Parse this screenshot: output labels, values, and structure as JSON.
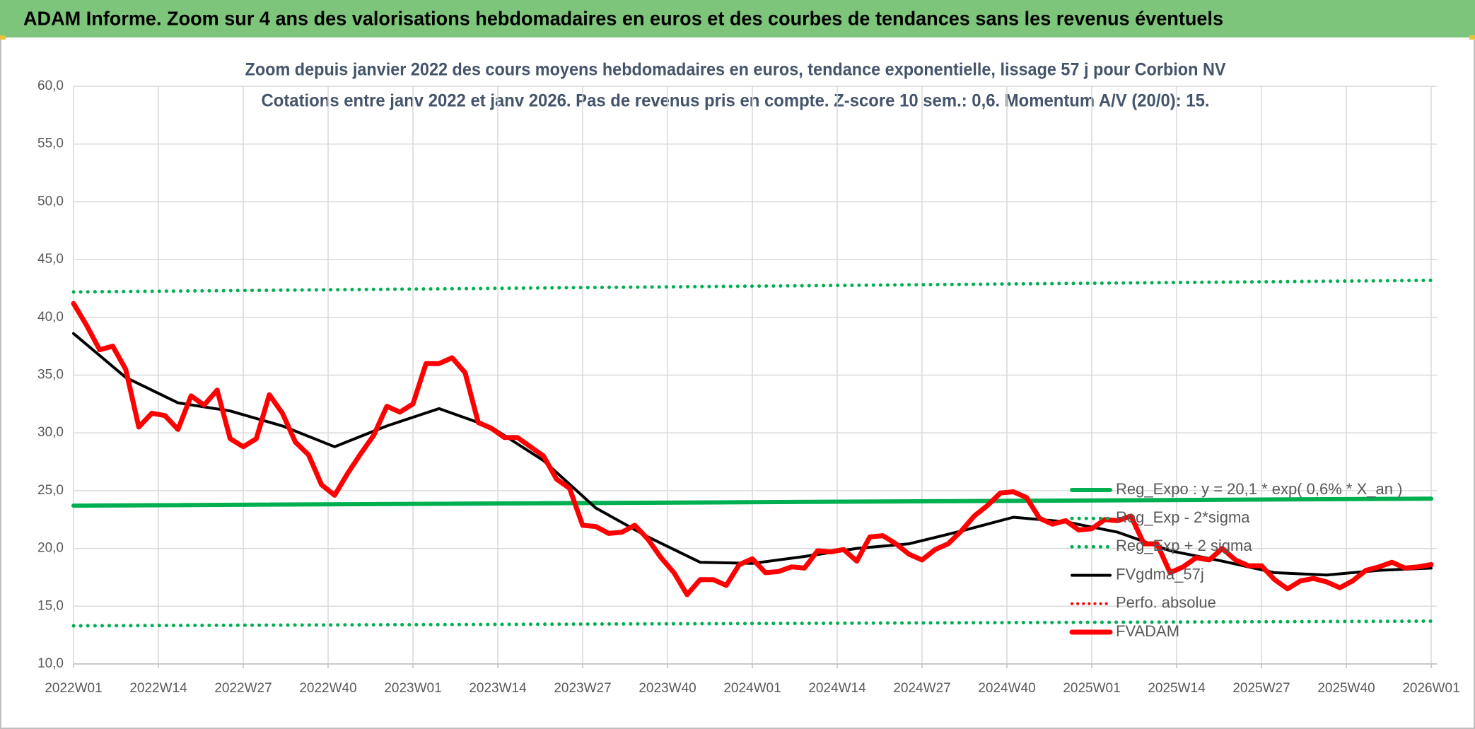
{
  "header": {
    "title": "ADAM Informe. Zoom sur 4 ans des valorisations hebdomadaires en euros et des courbes de tendances sans les revenus éventuels"
  },
  "chart_data": {
    "type": "line",
    "title": "Zoom depuis janvier 2022 des cours moyens hebdomadaires en euros, tendance exponentielle, lissage 57 j pour Corbion NV",
    "subtitle": "Cotations entre janv 2022 et janv 2026. Pas de revenus pris en compte. Z-score 10 sem.: 0,6. Momentum A/V (20/0): 15.",
    "xlim": [
      0,
      208
    ],
    "xticks": [
      {
        "value": 0,
        "label": "2022W01"
      },
      {
        "value": 13,
        "label": "2022W14"
      },
      {
        "value": 26,
        "label": "2022W27"
      },
      {
        "value": 39,
        "label": "2022W40"
      },
      {
        "value": 52,
        "label": "2023W01"
      },
      {
        "value": 65,
        "label": "2023W14"
      },
      {
        "value": 78,
        "label": "2023W27"
      },
      {
        "value": 91,
        "label": "2023W40"
      },
      {
        "value": 104,
        "label": "2024W01"
      },
      {
        "value": 117,
        "label": "2024W14"
      },
      {
        "value": 130,
        "label": "2024W27"
      },
      {
        "value": 143,
        "label": "2024W40"
      },
      {
        "value": 156,
        "label": "2025W01"
      },
      {
        "value": 169,
        "label": "2025W14"
      },
      {
        "value": 182,
        "label": "2025W27"
      },
      {
        "value": 195,
        "label": "2025W40"
      },
      {
        "value": 208,
        "label": "2026W01"
      }
    ],
    "ylim": [
      10,
      60
    ],
    "yticks": [
      {
        "value": 10,
        "label": "10,0"
      },
      {
        "value": 15,
        "label": "15,0"
      },
      {
        "value": 20,
        "label": "20,0"
      },
      {
        "value": 25,
        "label": "25,0"
      },
      {
        "value": 30,
        "label": "30,0"
      },
      {
        "value": 35,
        "label": "35,0"
      },
      {
        "value": 40,
        "label": "40,0"
      },
      {
        "value": 45,
        "label": "45,0"
      },
      {
        "value": 50,
        "label": "50,0"
      },
      {
        "value": 55,
        "label": "55,0"
      },
      {
        "value": 60,
        "label": "60,0"
      }
    ],
    "grid": true,
    "legend": "right",
    "series": [
      {
        "name": "Reg_Expo : y = 20,1 * exp( 0,6% * X_an )",
        "color": "#00b050",
        "style": "solid",
        "width": 6,
        "x": [
          0,
          208
        ],
        "values": [
          23.7,
          24.3
        ]
      },
      {
        "name": "Reg_Exp - 2*sigma",
        "color": "#00b050",
        "style": "dotted",
        "width": 5,
        "x": [
          0,
          208
        ],
        "values": [
          13.3,
          13.7
        ]
      },
      {
        "name": "Reg_Exp + 2 sigma",
        "color": "#00b050",
        "style": "dotted",
        "width": 5,
        "x": [
          0,
          208
        ],
        "values": [
          42.2,
          43.2
        ]
      },
      {
        "name": "FVgdma_57j",
        "color": "#000000",
        "style": "solid",
        "width": 4,
        "x": [
          0,
          8,
          16,
          24,
          32,
          40,
          48,
          56,
          64,
          72,
          80,
          88,
          96,
          104,
          112,
          120,
          128,
          136,
          144,
          152,
          160,
          168,
          176,
          184,
          192,
          200,
          208
        ],
        "values": [
          38.6,
          34.8,
          32.6,
          31.9,
          30.6,
          28.8,
          30.6,
          32.1,
          30.5,
          27.6,
          23.5,
          21.0,
          18.8,
          18.7,
          19.3,
          20.0,
          20.4,
          21.5,
          22.7,
          22.3,
          21.4,
          19.8,
          18.9,
          17.9,
          17.7,
          18.1,
          18.3
        ]
      },
      {
        "name": "Perfo. absolue",
        "color": "#ff0000",
        "style": "dotted",
        "width": 4,
        "x": [],
        "values": []
      },
      {
        "name": "FVADAM",
        "color": "#ff0000",
        "style": "solid",
        "width": 7,
        "x": [
          0,
          2,
          4,
          6,
          8,
          10,
          12,
          14,
          16,
          18,
          20,
          22,
          24,
          26,
          28,
          30,
          32,
          34,
          36,
          38,
          40,
          42,
          44,
          46,
          48,
          50,
          52,
          54,
          56,
          58,
          60,
          62,
          64,
          66,
          68,
          70,
          72,
          74,
          76,
          78,
          80,
          82,
          84,
          86,
          88,
          90,
          92,
          94,
          96,
          98,
          100,
          102,
          104,
          106,
          108,
          110,
          112,
          114,
          116,
          118,
          120,
          122,
          124,
          126,
          128,
          130,
          132,
          134,
          136,
          138,
          140,
          142,
          144,
          146,
          148,
          150,
          152,
          154,
          156,
          158,
          160,
          162,
          164,
          166,
          168,
          170,
          172,
          174,
          176,
          178,
          180,
          182,
          184,
          186,
          188,
          190,
          192,
          194,
          196,
          198,
          200,
          202,
          204,
          206,
          208
        ],
        "values": [
          41.2,
          39.3,
          37.2,
          37.5,
          35.5,
          30.5,
          31.7,
          31.5,
          30.3,
          33.2,
          32.4,
          33.7,
          29.5,
          28.8,
          29.5,
          33.3,
          31.7,
          29.2,
          28.1,
          25.5,
          24.6,
          26.5,
          28.2,
          29.8,
          32.3,
          31.8,
          32.5,
          36.0,
          36.0,
          36.5,
          35.2,
          30.9,
          30.4,
          29.6,
          29.6,
          28.8,
          28.0,
          26.0,
          25.2,
          22.0,
          21.9,
          21.3,
          21.4,
          22.0,
          20.8,
          19.2,
          17.9,
          16.0,
          17.3,
          17.3,
          16.8,
          18.6,
          19.1,
          17.9,
          18.0,
          18.4,
          18.3,
          19.8,
          19.7,
          19.9,
          18.9,
          21.0,
          21.1,
          20.4,
          19.5,
          19.0,
          19.9,
          20.4,
          21.5,
          22.8,
          23.7,
          24.8,
          24.9,
          24.4,
          22.6,
          22.1,
          22.4,
          21.6,
          21.7,
          22.5,
          22.4,
          22.8,
          20.4,
          20.4,
          17.9,
          18.4,
          19.2,
          19.0,
          20.0,
          19.0,
          18.5,
          18.5,
          17.3,
          16.5,
          17.2,
          17.4,
          17.1,
          16.6,
          17.2,
          18.1,
          18.4,
          18.8,
          18.3,
          18.4,
          18.6
        ]
      }
    ]
  }
}
